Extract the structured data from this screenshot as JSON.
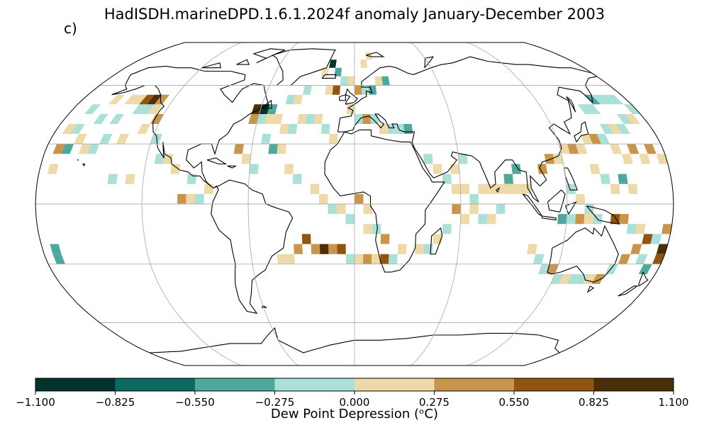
{
  "title": "HadISDH.marineDPD.1.6.1.2024f anomaly January-December 2003",
  "panel_label": "c)",
  "colorbar": {
    "label": "Dew Point Depression (ᵒC)",
    "ticks": [
      "−1.100",
      "−0.825",
      "−0.550",
      "−0.275",
      "0.000",
      "0.275",
      "0.550",
      "0.825",
      "1.100"
    ],
    "range": [
      -1.1,
      1.1
    ],
    "colors": [
      "#01332b",
      "#086a61",
      "#4fa89c",
      "#abe0d8",
      "#eed9a8",
      "#c9954a",
      "#925510",
      "#4a2f09"
    ]
  },
  "map": {
    "projection": "Robinson",
    "gridlines": true,
    "no_data_color": "#ffffff",
    "cells": [
      {
        "lon": -140,
        "lat": 45,
        "v": -0.1
      },
      {
        "lon": -135,
        "lat": 45,
        "v": -0.2
      },
      {
        "lon": -130,
        "lat": 45,
        "v": 0.1
      },
      {
        "lon": -145,
        "lat": 50,
        "v": 0.1
      },
      {
        "lon": -150,
        "lat": 40,
        "v": -0.1
      },
      {
        "lon": -160,
        "lat": 40,
        "v": -0.2
      },
      {
        "lon": -170,
        "lat": 35,
        "v": -0.1
      },
      {
        "lon": -175,
        "lat": 35,
        "v": 0.1
      },
      {
        "lon": -165,
        "lat": 30,
        "v": 0.15
      },
      {
        "lon": -170,
        "lat": 25,
        "v": -0.4
      },
      {
        "lon": -175,
        "lat": 25,
        "v": 0.4
      },
      {
        "lon": -160,
        "lat": 25,
        "v": 0.1
      },
      {
        "lon": -155,
        "lat": 25,
        "v": -0.1
      },
      {
        "lon": -150,
        "lat": 30,
        "v": -0.2
      },
      {
        "lon": -140,
        "lat": 30,
        "v": 0.2
      },
      {
        "lon": -130,
        "lat": 35,
        "v": 0.15
      },
      {
        "lon": -125,
        "lat": 40,
        "v": 0.5
      },
      {
        "lon": -120,
        "lat": 30,
        "v": -0.2
      },
      {
        "lon": -115,
        "lat": 20,
        "v": -0.1
      },
      {
        "lon": -110,
        "lat": 20,
        "v": 0.1
      },
      {
        "lon": -105,
        "lat": 15,
        "v": 0.1
      },
      {
        "lon": -95,
        "lat": 10,
        "v": -0.1
      },
      {
        "lon": -85,
        "lat": 5,
        "v": 0.1
      },
      {
        "lon": -100,
        "lat": 0,
        "v": 0.5
      },
      {
        "lon": -95,
        "lat": 0,
        "v": 0.1
      },
      {
        "lon": -90,
        "lat": 0,
        "v": -0.2
      },
      {
        "lon": -130,
        "lat": 10,
        "v": 0.1
      },
      {
        "lon": -140,
        "lat": 10,
        "v": -0.1
      },
      {
        "lon": -140,
        "lat": 50,
        "v": 0.6
      },
      {
        "lon": -135,
        "lat": 50,
        "v": 0.9
      },
      {
        "lon": -130,
        "lat": 50,
        "v": 0.5
      },
      {
        "lon": -175,
        "lat": -25,
        "v": -0.3
      },
      {
        "lon": -175,
        "lat": -30,
        "v": -0.5
      },
      {
        "lon": -65,
        "lat": 45,
        "v": 0.9
      },
      {
        "lon": -60,
        "lat": 45,
        "v": -0.9
      },
      {
        "lon": -55,
        "lat": 45,
        "v": -0.5
      },
      {
        "lon": -65,
        "lat": 40,
        "v": 0.4
      },
      {
        "lon": -60,
        "lat": 40,
        "v": -0.2
      },
      {
        "lon": -55,
        "lat": 40,
        "v": 0.1
      },
      {
        "lon": -50,
        "lat": 40,
        "v": 0.1
      },
      {
        "lon": -45,
        "lat": 35,
        "v": 0.1
      },
      {
        "lon": -40,
        "lat": 35,
        "v": -0.1
      },
      {
        "lon": -35,
        "lat": 40,
        "v": 0.2
      },
      {
        "lon": -30,
        "lat": 40,
        "v": -0.1
      },
      {
        "lon": -25,
        "lat": 40,
        "v": 0.1
      },
      {
        "lon": -20,
        "lat": 35,
        "v": -0.2
      },
      {
        "lon": -15,
        "lat": 30,
        "v": 0.1
      },
      {
        "lon": -45,
        "lat": 50,
        "v": -0.1
      },
      {
        "lon": -40,
        "lat": 50,
        "v": 0.1
      },
      {
        "lon": -35,
        "lat": 55,
        "v": -0.2
      },
      {
        "lon": -20,
        "lat": 55,
        "v": 0.2
      },
      {
        "lon": -15,
        "lat": 55,
        "v": 0.6
      },
      {
        "lon": -10,
        "lat": 60,
        "v": -0.2
      },
      {
        "lon": -5,
        "lat": 60,
        "v": 0.1
      },
      {
        "lon": -55,
        "lat": 30,
        "v": -0.1
      },
      {
        "lon": -50,
        "lat": 25,
        "v": -0.4
      },
      {
        "lon": -45,
        "lat": 25,
        "v": 0.1
      },
      {
        "lon": -70,
        "lat": 25,
        "v": 0.4
      },
      {
        "lon": -65,
        "lat": 20,
        "v": 0.1
      },
      {
        "lon": -60,
        "lat": 15,
        "v": -0.1
      },
      {
        "lon": -40,
        "lat": 15,
        "v": 0.1
      },
      {
        "lon": -35,
        "lat": 10,
        "v": -0.1
      },
      {
        "lon": -25,
        "lat": 5,
        "v": 0.1
      },
      {
        "lon": -20,
        "lat": 0,
        "v": 0.1
      },
      {
        "lon": -15,
        "lat": -5,
        "v": -0.1
      },
      {
        "lon": -10,
        "lat": -5,
        "v": 0.2
      },
      {
        "lon": 0,
        "lat": 0,
        "v": 0.5
      },
      {
        "lon": -5,
        "lat": -10,
        "v": -0.1
      },
      {
        "lon": 5,
        "lat": -5,
        "v": 0.1
      },
      {
        "lon": -30,
        "lat": -20,
        "v": 0.6
      },
      {
        "lon": -25,
        "lat": -25,
        "v": 0.5
      },
      {
        "lon": -20,
        "lat": -25,
        "v": 0.9
      },
      {
        "lon": -15,
        "lat": -25,
        "v": 0.5
      },
      {
        "lon": -10,
        "lat": -25,
        "v": 0.6
      },
      {
        "lon": -35,
        "lat": -25,
        "v": 0.4
      },
      {
        "lon": -45,
        "lat": -30,
        "v": 0.1
      },
      {
        "lon": -40,
        "lat": -30,
        "v": 0.2
      },
      {
        "lon": -5,
        "lat": -30,
        "v": -0.1
      },
      {
        "lon": 0,
        "lat": -30,
        "v": 0.1
      },
      {
        "lon": 5,
        "lat": -30,
        "v": 0.5
      },
      {
        "lon": 10,
        "lat": -30,
        "v": 0.1
      },
      {
        "lon": 15,
        "lat": -30,
        "v": 0.6
      },
      {
        "lon": 20,
        "lat": -30,
        "v": -0.1
      },
      {
        "lon": 25,
        "lat": -25,
        "v": 0.1
      },
      {
        "lon": 10,
        "lat": -15,
        "v": -0.1
      },
      {
        "lon": 15,
        "lat": -20,
        "v": 0.5
      },
      {
        "lon": 5,
        "lat": -15,
        "v": 0.1
      },
      {
        "lon": -5,
        "lat": 60,
        "v": 0.1
      },
      {
        "lon": 0,
        "lat": 55,
        "v": 0.5
      },
      {
        "lon": 5,
        "lat": 55,
        "v": -0.2
      },
      {
        "lon": 10,
        "lat": 55,
        "v": -0.3
      },
      {
        "lon": 15,
        "lat": 60,
        "v": 0.2
      },
      {
        "lon": 20,
        "lat": 60,
        "v": -0.4
      },
      {
        "lon": -5,
        "lat": 45,
        "v": 0.1
      },
      {
        "lon": 0,
        "lat": 40,
        "v": -0.2
      },
      {
        "lon": 5,
        "lat": 40,
        "v": 0.3
      },
      {
        "lon": 10,
        "lat": 40,
        "v": -0.1
      },
      {
        "lon": 15,
        "lat": 35,
        "v": 0.1
      },
      {
        "lon": 20,
        "lat": 35,
        "v": -0.2
      },
      {
        "lon": 25,
        "lat": 35,
        "v": -0.1
      },
      {
        "lon": 30,
        "lat": 35,
        "v": -0.5
      },
      {
        "lon": -25,
        "lat": 65,
        "v": 0.1
      },
      {
        "lon": -20,
        "lat": 70,
        "v": -0.9
      },
      {
        "lon": 5,
        "lat": 70,
        "v": 0.1
      },
      {
        "lon": 10,
        "lat": 75,
        "v": 0.2
      },
      {
        "lon": -15,
        "lat": 65,
        "v": -0.3
      },
      {
        "lon": 40,
        "lat": 20,
        "v": -0.1
      },
      {
        "lon": 45,
        "lat": 15,
        "v": 0.1
      },
      {
        "lon": 50,
        "lat": 10,
        "v": -0.2
      },
      {
        "lon": 55,
        "lat": 15,
        "v": 0.1
      },
      {
        "lon": 60,
        "lat": 20,
        "v": -0.1
      },
      {
        "lon": 55,
        "lat": 5,
        "v": 0.1
      },
      {
        "lon": 60,
        "lat": 5,
        "v": 0.2
      },
      {
        "lon": 65,
        "lat": 0,
        "v": -0.1
      },
      {
        "lon": 70,
        "lat": 5,
        "v": 0.1
      },
      {
        "lon": 75,
        "lat": 5,
        "v": 0.1
      },
      {
        "lon": 80,
        "lat": 5,
        "v": 0.2
      },
      {
        "lon": 85,
        "lat": 10,
        "v": -0.5
      },
      {
        "lon": 90,
        "lat": 15,
        "v": -0.4
      },
      {
        "lon": 85,
        "lat": 5,
        "v": 0.1
      },
      {
        "lon": 90,
        "lat": 5,
        "v": 0.2
      },
      {
        "lon": 95,
        "lat": 5,
        "v": 0.1
      },
      {
        "lon": 65,
        "lat": -5,
        "v": 0.1
      },
      {
        "lon": 70,
        "lat": -10,
        "v": -0.1
      },
      {
        "lon": 60,
        "lat": -10,
        "v": 0.2
      },
      {
        "lon": 55,
        "lat": -5,
        "v": 0.5
      },
      {
        "lon": 50,
        "lat": -15,
        "v": -0.1
      },
      {
        "lon": 45,
        "lat": -20,
        "v": 0.1
      },
      {
        "lon": 40,
        "lat": -25,
        "v": -0.1
      },
      {
        "lon": 35,
        "lat": -25,
        "v": 0.2
      },
      {
        "lon": 75,
        "lat": -10,
        "v": 0.1
      },
      {
        "lon": 80,
        "lat": -5,
        "v": -0.1
      },
      {
        "lon": 105,
        "lat": 15,
        "v": 0.4
      },
      {
        "lon": 110,
        "lat": 20,
        "v": 0.5
      },
      {
        "lon": 115,
        "lat": 20,
        "v": 0.2
      },
      {
        "lon": 120,
        "lat": 25,
        "v": 0.1
      },
      {
        "lon": 125,
        "lat": 25,
        "v": 0.5
      },
      {
        "lon": 130,
        "lat": 25,
        "v": 0.2
      },
      {
        "lon": 135,
        "lat": 30,
        "v": 0.1
      },
      {
        "lon": 140,
        "lat": 30,
        "v": 0.5
      },
      {
        "lon": 145,
        "lat": 30,
        "v": -0.1
      },
      {
        "lon": 150,
        "lat": 35,
        "v": -0.2
      },
      {
        "lon": 155,
        "lat": 35,
        "v": 0.1
      },
      {
        "lon": 160,
        "lat": 35,
        "v": -0.1
      },
      {
        "lon": 165,
        "lat": 40,
        "v": -0.2
      },
      {
        "lon": 170,
        "lat": 40,
        "v": 0.2
      },
      {
        "lon": 175,
        "lat": 45,
        "v": -0.1
      },
      {
        "lon": 150,
        "lat": 45,
        "v": -0.2
      },
      {
        "lon": 145,
        "lat": 45,
        "v": -0.1
      },
      {
        "lon": 155,
        "lat": 50,
        "v": -0.3
      },
      {
        "lon": 160,
        "lat": 50,
        "v": -0.1
      },
      {
        "lon": 165,
        "lat": 50,
        "v": -0.2
      },
      {
        "lon": 170,
        "lat": 50,
        "v": -0.1
      },
      {
        "lon": 150,
        "lat": 25,
        "v": 0.1
      },
      {
        "lon": 155,
        "lat": 20,
        "v": 0.2
      },
      {
        "lon": 160,
        "lat": 25,
        "v": 0.5
      },
      {
        "lon": 165,
        "lat": 20,
        "v": 0.1
      },
      {
        "lon": 170,
        "lat": 25,
        "v": 0.4
      },
      {
        "lon": 175,
        "lat": 20,
        "v": 0.2
      },
      {
        "lon": 135,
        "lat": 15,
        "v": 0.1
      },
      {
        "lon": 140,
        "lat": 10,
        "v": -0.2
      },
      {
        "lon": 145,
        "lat": 5,
        "v": 0.1
      },
      {
        "lon": 150,
        "lat": 10,
        "v": -0.5
      },
      {
        "lon": 155,
        "lat": 5,
        "v": 0.1
      },
      {
        "lon": 120,
        "lat": 5,
        "v": -0.2
      },
      {
        "lon": 125,
        "lat": 0,
        "v": 0.1
      },
      {
        "lon": 130,
        "lat": -5,
        "v": -0.1
      },
      {
        "lon": 115,
        "lat": -10,
        "v": -0.5
      },
      {
        "lon": 120,
        "lat": -10,
        "v": -0.2
      },
      {
        "lon": 125,
        "lat": -10,
        "v": 0.5
      },
      {
        "lon": 130,
        "lat": -10,
        "v": 0.2
      },
      {
        "lon": 135,
        "lat": -10,
        "v": -0.1
      },
      {
        "lon": 145,
        "lat": -10,
        "v": 0.6
      },
      {
        "lon": 150,
        "lat": -10,
        "v": 0.4
      },
      {
        "lon": 155,
        "lat": -15,
        "v": -0.2
      },
      {
        "lon": 160,
        "lat": -15,
        "v": 0.1
      },
      {
        "lon": 165,
        "lat": -20,
        "v": 0.6
      },
      {
        "lon": 170,
        "lat": -20,
        "v": -0.2
      },
      {
        "lon": 175,
        "lat": -15,
        "v": 0.4
      },
      {
        "lon": 175,
        "lat": -25,
        "v": 0.9
      },
      {
        "lon": 160,
        "lat": -25,
        "v": 0.5
      },
      {
        "lon": 165,
        "lat": -30,
        "v": -0.2
      },
      {
        "lon": 155,
        "lat": -30,
        "v": 0.5
      },
      {
        "lon": 150,
        "lat": -35,
        "v": -0.1
      },
      {
        "lon": 145,
        "lat": -40,
        "v": 0.4
      },
      {
        "lon": 140,
        "lat": -40,
        "v": 0.1
      },
      {
        "lon": 135,
        "lat": -40,
        "v": -0.2
      },
      {
        "lon": 130,
        "lat": -40,
        "v": -0.1
      },
      {
        "lon": 125,
        "lat": -40,
        "v": 0.1
      },
      {
        "lon": 120,
        "lat": -40,
        "v": -0.2
      },
      {
        "lon": 115,
        "lat": -35,
        "v": 0.5
      },
      {
        "lon": 110,
        "lat": -35,
        "v": -0.1
      },
      {
        "lon": 105,
        "lat": -30,
        "v": -0.2
      },
      {
        "lon": 100,
        "lat": -25,
        "v": 0.1
      },
      {
        "lon": 170,
        "lat": -35,
        "v": -0.3
      },
      {
        "lon": 175,
        "lat": -30,
        "v": 0.6
      },
      {
        "lon": -175,
        "lat": 15,
        "v": 0.1
      },
      {
        "lon": -170,
        "lat": 45,
        "v": -0.1
      },
      {
        "lon": -150,
        "lat": 50,
        "v": 0.1
      },
      {
        "lon": -160,
        "lat": 50,
        "v": 0.2
      }
    ]
  }
}
